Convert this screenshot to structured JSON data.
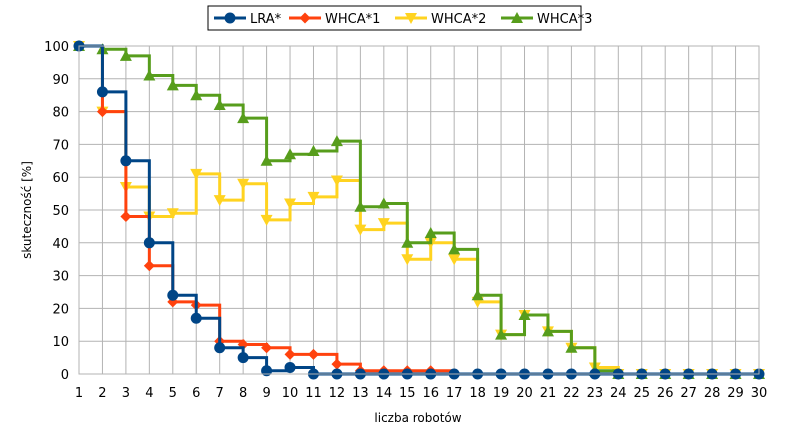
{
  "chart_data": {
    "type": "line",
    "step": true,
    "xlabel": "liczba robotów",
    "ylabel": "skuteczność [%]",
    "xlim": [
      1,
      30
    ],
    "ylim": [
      0,
      100
    ],
    "x_ticks": [
      1,
      2,
      3,
      4,
      5,
      6,
      7,
      8,
      9,
      10,
      11,
      12,
      13,
      14,
      15,
      16,
      17,
      18,
      19,
      20,
      21,
      22,
      23,
      24,
      25,
      26,
      27,
      28,
      29,
      30
    ],
    "y_ticks": [
      0,
      10,
      20,
      30,
      40,
      50,
      60,
      70,
      80,
      90,
      100
    ],
    "grid": true,
    "legend_position": "top",
    "x": [
      1,
      2,
      3,
      4,
      5,
      6,
      7,
      8,
      9,
      10,
      11,
      12,
      13,
      14,
      15,
      16,
      17,
      18,
      19,
      20,
      21,
      22,
      23,
      24,
      25,
      26,
      27,
      28,
      29,
      30
    ],
    "series": [
      {
        "name": "LRA*",
        "color": "#004586",
        "marker": "circle",
        "values": [
          100,
          86,
          65,
          40,
          24,
          17,
          8,
          5,
          1,
          2,
          0,
          0,
          0,
          0,
          0,
          0,
          0,
          0,
          0,
          0,
          0,
          0,
          0,
          0,
          0,
          0,
          0,
          0,
          0,
          0
        ]
      },
      {
        "name": "WHCA*1",
        "color": "#ff420e",
        "marker": "diamond",
        "values": [
          100,
          80,
          48,
          33,
          22,
          21,
          10,
          9,
          8,
          6,
          6,
          3,
          1,
          1,
          1,
          1,
          0,
          0,
          0,
          0,
          0,
          0,
          0,
          0,
          0,
          0,
          0,
          0,
          0,
          0
        ]
      },
      {
        "name": "WHCA*2",
        "color": "#ffd320",
        "marker": "triangle-down",
        "values": [
          100,
          80,
          57,
          48,
          49,
          61,
          53,
          58,
          47,
          52,
          54,
          59,
          44,
          46,
          35,
          40,
          35,
          22,
          12,
          18,
          13,
          8,
          2,
          0,
          0,
          0,
          0,
          0,
          0,
          0
        ]
      },
      {
        "name": "WHCA*3",
        "color": "#579d1c",
        "marker": "triangle-up",
        "values": [
          100,
          99,
          97,
          91,
          88,
          85,
          82,
          78,
          65,
          67,
          68,
          71,
          51,
          52,
          40,
          43,
          38,
          24,
          12,
          18,
          13,
          8,
          1,
          0,
          0,
          0,
          0,
          0,
          0,
          0
        ]
      }
    ]
  }
}
